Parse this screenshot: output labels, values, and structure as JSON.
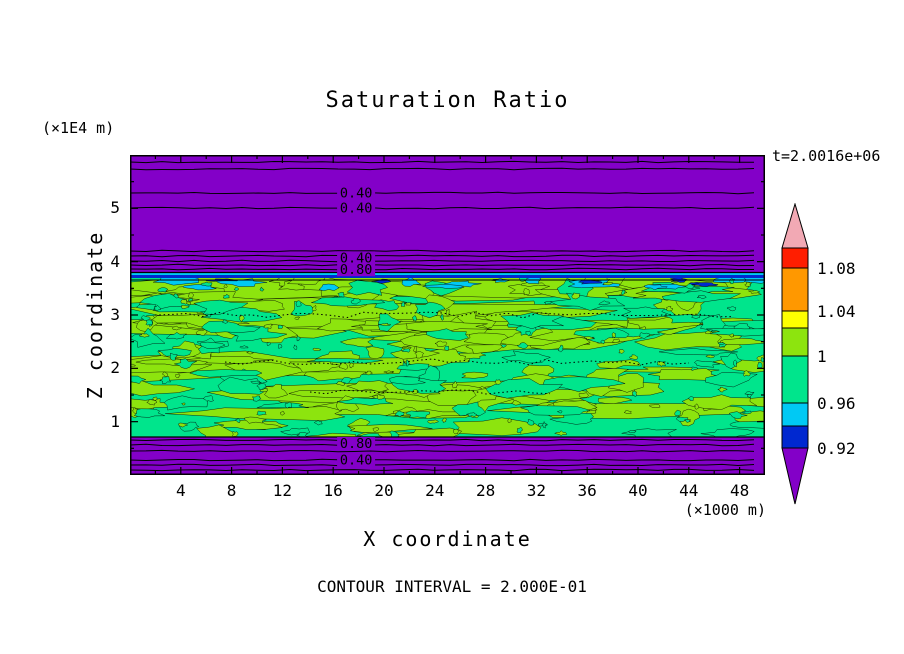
{
  "figure": {
    "title": "Saturation Ratio",
    "time_label": "t=2.0016e+06",
    "contour_interval_label": "CONTOUR INTERVAL = 2.000E-01",
    "x_axis": {
      "label": "X coordinate",
      "units": "(×1000 m)"
    },
    "y_axis": {
      "label": "Z coordinate",
      "units": "(×1E4 m)"
    }
  },
  "chart_data": {
    "type": "heatmap",
    "title": "Saturation Ratio",
    "xlabel": "X coordinate",
    "ylabel": "Z coordinate",
    "x_units": "(×1000 m)",
    "y_units": "(×1E4 m)",
    "x_ticks": [
      4,
      8,
      12,
      16,
      20,
      24,
      28,
      32,
      36,
      40,
      44,
      48
    ],
    "y_ticks": [
      1,
      2,
      3,
      4,
      5
    ],
    "x_range": [
      0,
      50
    ],
    "y_range": [
      0,
      6
    ],
    "time_annotation": "t=2.0016e+06",
    "contour_interval": "2.000E-01",
    "grid": false,
    "legend_position": "right-colorbar",
    "colorbar": {
      "labels": [
        "1.08",
        "1.04",
        "1",
        "0.96",
        "0.92"
      ],
      "levels": [
        1.08,
        1.04,
        1.0,
        0.96,
        0.92
      ],
      "segment_colors": [
        "#F2A9B4",
        "#FF1E00",
        "#FF9800",
        "#FFFF00",
        "#8DE40E",
        "#00E58C",
        "#00C9F4",
        "#0028D0",
        "#8300C8"
      ]
    },
    "colors": {
      "purple": "#8300C8",
      "springgreen": "#00E58C",
      "chartreuse": "#8DE40E",
      "cyan": "#00C9F4",
      "blue": "#0028D0",
      "red": "#FF1E00",
      "orange": "#FF9800",
      "yellow": "#FFFF00",
      "pink": "#F2A9B4"
    },
    "contour_labels": [
      {
        "text": "0.40",
        "x": 17.8,
        "z": 5.29
      },
      {
        "text": "0.40",
        "x": 17.8,
        "z": 5.01
      },
      {
        "text": "0.40",
        "x": 17.8,
        "z": 4.07
      },
      {
        "text": "0.80",
        "x": 17.8,
        "z": 3.85
      },
      {
        "text": "0.80",
        "x": 17.8,
        "z": 0.59
      },
      {
        "text": "0.40",
        "x": 17.8,
        "z": 0.28
      }
    ],
    "bands": [
      {
        "z_from": 3.79,
        "z_to": 6.0,
        "saturation": "< 0.4",
        "fill": "purple",
        "note": "stratified horizontal contour lines"
      },
      {
        "z_from": 3.66,
        "z_to": 3.79,
        "saturation": "0.8 - 0.96",
        "fill": "cyan/blue transition stripe"
      },
      {
        "z_from": 0.71,
        "z_to": 3.66,
        "saturation": "~0.96 - 1.04",
        "fill": "mottled springgreen/chartreuse with noisy contours"
      },
      {
        "z_from": 0.0,
        "z_to": 0.71,
        "saturation": "< 0.4",
        "fill": "purple",
        "note": "stratified horizontal contour lines"
      }
    ]
  }
}
